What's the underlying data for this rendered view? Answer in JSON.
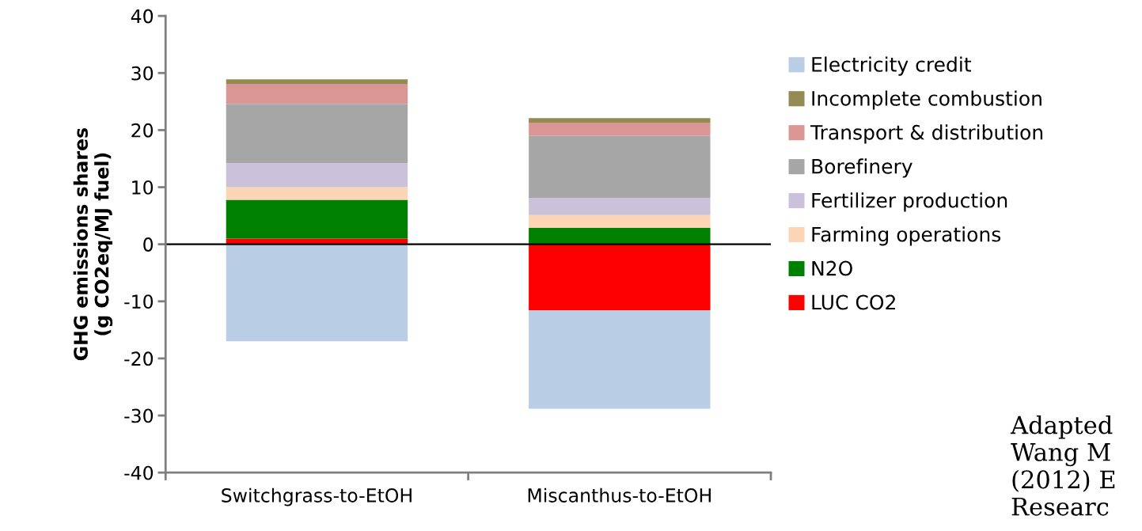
{
  "chart_data": {
    "type": "bar",
    "stacked": true,
    "ylabel": "GHG emissions shares\n(g CO2eq/MJ fuel)",
    "categories": [
      "Switchgrass-to-EtOH",
      "Miscanthus-to-EtOH"
    ],
    "series": [
      {
        "name": "LUC CO2",
        "color": "#ff0000",
        "values": [
          1.0,
          -11.6
        ]
      },
      {
        "name": "N2O",
        "color": "#008000",
        "values": [
          6.8,
          2.9
        ]
      },
      {
        "name": "Farming operations",
        "color": "#fcd5b5",
        "values": [
          2.2,
          2.2
        ]
      },
      {
        "name": "Fertilizer production",
        "color": "#ccc1da",
        "values": [
          4.2,
          3.0
        ]
      },
      {
        "name": "Borefinery",
        "color": "#a6a6a6",
        "values": [
          10.4,
          10.9
        ]
      },
      {
        "name": "Transport & distribution",
        "color": "#d99694",
        "values": [
          3.5,
          2.3
        ]
      },
      {
        "name": "Incomplete combustion",
        "color": "#948a54",
        "values": [
          0.8,
          0.8
        ]
      },
      {
        "name": "Electricity credit",
        "color": "#b9cde5",
        "values": [
          -17.0,
          -17.2
        ]
      }
    ],
    "ylim": [
      -40,
      40
    ],
    "yticks": [
      -40,
      -30,
      -20,
      -10,
      0,
      10,
      20,
      30,
      40
    ],
    "grid": false,
    "legend": "right",
    "ref_lines": [
      {
        "axis": "y",
        "value": 0,
        "color": "#000000"
      }
    ],
    "annotations": [
      "Adapted\nWang M\n(2012) E\nResearc"
    ]
  }
}
